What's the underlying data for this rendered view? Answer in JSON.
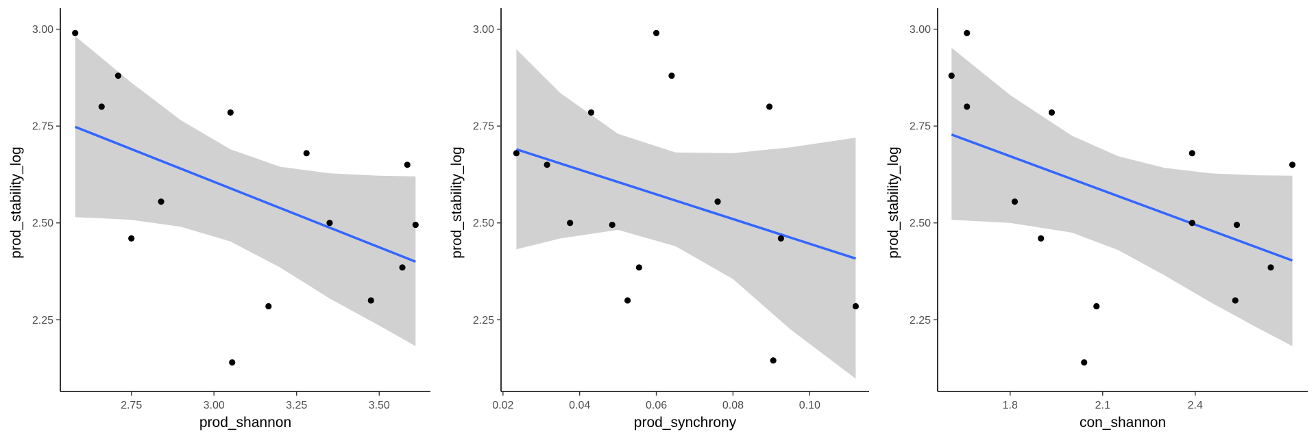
{
  "chart_data": [
    {
      "type": "scatter",
      "xlabel": "prod_shannon",
      "ylabel": "prod_stability_log",
      "xlim": [
        2.535,
        3.655
      ],
      "ylim": [
        2.065,
        3.04
      ],
      "xticks": [
        2.75,
        3.0,
        3.25,
        3.5
      ],
      "xtick_labels": [
        "2.75",
        "3.00",
        "3.25",
        "3.50"
      ],
      "yticks": [
        2.25,
        2.5,
        2.75,
        3.0
      ],
      "ytick_labels": [
        "2.25",
        "2.50",
        "2.75",
        "3.00"
      ],
      "grid": false,
      "points": [
        {
          "x": 2.58,
          "y": 2.99
        },
        {
          "x": 2.71,
          "y": 2.88
        },
        {
          "x": 2.66,
          "y": 2.8
        },
        {
          "x": 2.75,
          "y": 2.46
        },
        {
          "x": 2.84,
          "y": 2.555
        },
        {
          "x": 3.05,
          "y": 2.785
        },
        {
          "x": 3.055,
          "y": 2.14
        },
        {
          "x": 3.165,
          "y": 2.285
        },
        {
          "x": 3.28,
          "y": 2.68
        },
        {
          "x": 3.35,
          "y": 2.5
        },
        {
          "x": 3.475,
          "y": 2.3
        },
        {
          "x": 3.57,
          "y": 2.385
        },
        {
          "x": 3.585,
          "y": 2.65
        },
        {
          "x": 3.61,
          "y": 2.495
        }
      ],
      "fit": {
        "x": [
          2.58,
          3.61
        ],
        "y": [
          2.748,
          2.4
        ]
      },
      "ci_band": [
        {
          "x": 2.58,
          "lo": 2.515,
          "hi": 2.982
        },
        {
          "x": 2.75,
          "lo": 2.508,
          "hi": 2.862
        },
        {
          "x": 2.9,
          "lo": 2.49,
          "hi": 2.765
        },
        {
          "x": 3.05,
          "lo": 2.452,
          "hi": 2.69
        },
        {
          "x": 3.2,
          "lo": 2.385,
          "hi": 2.645
        },
        {
          "x": 3.35,
          "lo": 2.305,
          "hi": 2.628
        },
        {
          "x": 3.5,
          "lo": 2.235,
          "hi": 2.622
        },
        {
          "x": 3.61,
          "lo": 2.182,
          "hi": 2.62
        }
      ]
    },
    {
      "type": "scatter",
      "xlabel": "prod_synchrony",
      "ylabel": "prod_stability_log",
      "xlim": [
        0.0195,
        0.1155
      ],
      "ylim": [
        2.065,
        3.04
      ],
      "xticks": [
        0.02,
        0.04,
        0.06,
        0.08,
        0.1
      ],
      "xtick_labels": [
        "0.02",
        "0.04",
        "0.06",
        "0.08",
        "0.10"
      ],
      "yticks": [
        2.25,
        2.5,
        2.75,
        3.0
      ],
      "ytick_labels": [
        "2.25",
        "2.50",
        "2.75",
        "3.00"
      ],
      "grid": false,
      "points": [
        {
          "x": 0.06,
          "y": 2.99
        },
        {
          "x": 0.064,
          "y": 2.88
        },
        {
          "x": 0.043,
          "y": 2.785
        },
        {
          "x": 0.0235,
          "y": 2.68
        },
        {
          "x": 0.0315,
          "y": 2.65
        },
        {
          "x": 0.0895,
          "y": 2.8
        },
        {
          "x": 0.0375,
          "y": 2.5
        },
        {
          "x": 0.0485,
          "y": 2.495
        },
        {
          "x": 0.076,
          "y": 2.555
        },
        {
          "x": 0.0925,
          "y": 2.46
        },
        {
          "x": 0.0555,
          "y": 2.385
        },
        {
          "x": 0.0525,
          "y": 2.3
        },
        {
          "x": 0.0905,
          "y": 2.145
        },
        {
          "x": 0.112,
          "y": 2.285
        }
      ],
      "fit": {
        "x": [
          0.0235,
          0.112
        ],
        "y": [
          2.69,
          2.408
        ]
      },
      "ci_band": [
        {
          "x": 0.0235,
          "lo": 2.432,
          "hi": 2.948
        },
        {
          "x": 0.035,
          "lo": 2.46,
          "hi": 2.835
        },
        {
          "x": 0.05,
          "lo": 2.482,
          "hi": 2.73
        },
        {
          "x": 0.065,
          "lo": 2.44,
          "hi": 2.682
        },
        {
          "x": 0.08,
          "lo": 2.355,
          "hi": 2.68
        },
        {
          "x": 0.095,
          "lo": 2.225,
          "hi": 2.695
        },
        {
          "x": 0.112,
          "lo": 2.098,
          "hi": 2.72
        }
      ]
    },
    {
      "type": "scatter",
      "xlabel": "con_shannon",
      "ylabel": "prod_stability_log",
      "xlim": [
        1.565,
        2.765
      ],
      "ylim": [
        2.065,
        3.04
      ],
      "xticks": [
        1.8,
        2.1,
        2.4
      ],
      "xtick_labels": [
        "1.8",
        "2.1",
        "2.4"
      ],
      "yticks": [
        2.25,
        2.5,
        2.75,
        3.0
      ],
      "ytick_labels": [
        "2.25",
        "2.50",
        "2.75",
        "3.00"
      ],
      "grid": false,
      "points": [
        {
          "x": 1.66,
          "y": 2.99
        },
        {
          "x": 1.61,
          "y": 2.88
        },
        {
          "x": 1.66,
          "y": 2.8
        },
        {
          "x": 1.935,
          "y": 2.785
        },
        {
          "x": 1.815,
          "y": 2.555
        },
        {
          "x": 1.9,
          "y": 2.46
        },
        {
          "x": 2.08,
          "y": 2.285
        },
        {
          "x": 2.04,
          "y": 2.14
        },
        {
          "x": 2.39,
          "y": 2.68
        },
        {
          "x": 2.39,
          "y": 2.5
        },
        {
          "x": 2.535,
          "y": 2.495
        },
        {
          "x": 2.53,
          "y": 2.3
        },
        {
          "x": 2.645,
          "y": 2.385
        },
        {
          "x": 2.715,
          "y": 2.65
        }
      ],
      "fit": {
        "x": [
          1.61,
          2.715
        ],
        "y": [
          2.728,
          2.403
        ]
      },
      "ci_band": [
        {
          "x": 1.61,
          "lo": 2.508,
          "hi": 2.952
        },
        {
          "x": 1.8,
          "lo": 2.5,
          "hi": 2.83
        },
        {
          "x": 2.0,
          "lo": 2.475,
          "hi": 2.725
        },
        {
          "x": 2.15,
          "lo": 2.43,
          "hi": 2.672
        },
        {
          "x": 2.3,
          "lo": 2.365,
          "hi": 2.642
        },
        {
          "x": 2.45,
          "lo": 2.295,
          "hi": 2.628
        },
        {
          "x": 2.6,
          "lo": 2.23,
          "hi": 2.623
        },
        {
          "x": 2.715,
          "lo": 2.182,
          "hi": 2.622
        }
      ]
    }
  ]
}
